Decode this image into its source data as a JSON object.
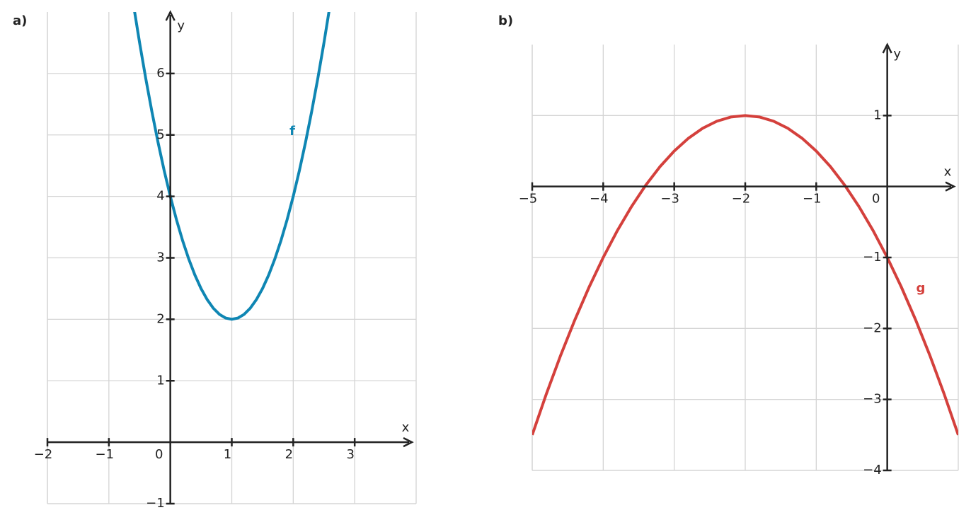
{
  "chart_data": [
    {
      "type": "line",
      "panel_label": "a)",
      "x_label": "x",
      "y_label": "y",
      "xlim": [
        -2,
        4
      ],
      "ylim": [
        -1,
        7
      ],
      "xticks": [
        {
          "value": -2,
          "label": "−2"
        },
        {
          "value": -1,
          "label": "−1"
        },
        0,
        1,
        2,
        3
      ],
      "yticks": [
        {
          "value": -1,
          "label": "−1"
        },
        1,
        2,
        3,
        4,
        5,
        6
      ],
      "grid": true,
      "series": [
        {
          "name": "f",
          "color": "#0f86b3",
          "x": [
            -0.6,
            -0.5,
            -0.4,
            -0.3,
            -0.2,
            -0.1,
            0,
            0.1,
            0.2,
            0.3,
            0.4,
            0.5,
            0.6,
            0.7,
            0.8,
            0.9,
            1,
            1.1,
            1.2,
            1.3,
            1.4,
            1.5,
            1.6,
            1.7,
            1.8,
            1.9,
            2,
            2.1,
            2.2,
            2.3,
            2.4,
            2.5,
            2.6
          ],
          "values": [
            7.12,
            6.5,
            5.92,
            5.38,
            4.88,
            4.42,
            4,
            3.62,
            3.28,
            2.98,
            2.72,
            2.5,
            2.32,
            2.18,
            2.08,
            2.02,
            2,
            2.02,
            2.08,
            2.18,
            2.32,
            2.5,
            2.72,
            2.98,
            3.28,
            3.62,
            4,
            4.42,
            4.88,
            5.38,
            5.92,
            6.5,
            7.12
          ]
        }
      ]
    },
    {
      "type": "line",
      "panel_label": "b)",
      "x_label": "x",
      "y_label": "y",
      "xlim": [
        -5,
        1
      ],
      "ylim": [
        -4,
        2
      ],
      "xticks": [
        {
          "value": -5,
          "label": "−5"
        },
        {
          "value": -4,
          "label": "−4"
        },
        {
          "value": -3,
          "label": "−3"
        },
        {
          "value": -2,
          "label": "−2"
        },
        {
          "value": -1,
          "label": "−1"
        },
        0
      ],
      "yticks": [
        {
          "value": -4,
          "label": "−4"
        },
        {
          "value": -3,
          "label": "−3"
        },
        {
          "value": -2,
          "label": "−2"
        },
        {
          "value": -1,
          "label": "−1"
        },
        1
      ],
      "grid": true,
      "series": [
        {
          "name": "g",
          "color": "#d4403c",
          "x": [
            -5,
            -4.8,
            -4.6,
            -4.4,
            -4.2,
            -4,
            -3.8,
            -3.6,
            -3.4,
            -3.2,
            -3,
            -2.8,
            -2.6,
            -2.4,
            -2.2,
            -2,
            -1.8,
            -1.6,
            -1.4,
            -1.2,
            -1,
            -0.8,
            -0.6,
            -0.4,
            -0.2,
            0,
            0.2,
            0.4,
            0.6,
            0.8,
            1
          ],
          "values": [
            -3.5,
            -2.92,
            -2.38,
            -1.88,
            -1.42,
            -1,
            -0.62,
            -0.28,
            0.02,
            0.28,
            0.5,
            0.68,
            0.82,
            0.92,
            0.98,
            1,
            0.98,
            0.92,
            0.82,
            0.68,
            0.5,
            0.28,
            0.02,
            -0.28,
            -0.62,
            -1,
            -1.42,
            -1.88,
            -2.38,
            -2.92,
            -3.5
          ]
        }
      ]
    }
  ]
}
